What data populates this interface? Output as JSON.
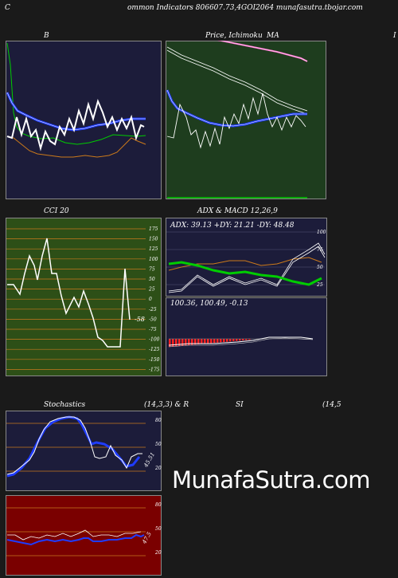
{
  "header": {
    "left_letter": "C",
    "title": "ommon  Indicators 806607.73,4GOI2064  munafasutra.tbojar.com"
  },
  "panels": {
    "bb": {
      "title": "B",
      "bg": "#1c1c3a"
    },
    "price": {
      "title_left": "Price,  Ichimoku",
      "title_right": "MA",
      "edge_letter": "I",
      "bg": "#1e3d1e"
    },
    "cci": {
      "title": "CCI 20",
      "bg": "#2d4f17",
      "value": "-58",
      "ticks": [
        "175",
        "150",
        "125",
        "100",
        "75",
        "50",
        "25",
        "0",
        "-25",
        "-50",
        "-75",
        "-100",
        "-125",
        "-150",
        "-175"
      ]
    },
    "adx": {
      "title": "ADX  & MACD 12,26,9",
      "readout": "ADX: 39.13  +DY: 21.21 -DY: 48.48",
      "bg": "#1c1c3a",
      "ticks": [
        "100",
        "75",
        "50",
        "25"
      ]
    },
    "macd": {
      "readout": "100.36,  100.49,  -0.13",
      "bg": "#1c1c3a"
    },
    "stoch": {
      "title_left": "Stochastics",
      "title_mid": "(14,3,3) & R",
      "title_rsi": "SI",
      "title_right": "(14,5",
      "bg": "#1c1c3a",
      "value": "45.51",
      "ticks": [
        "80",
        "50",
        "20"
      ]
    },
    "rsi": {
      "bg": "#7a0000",
      "value": "47.5",
      "ticks": [
        "80",
        "50",
        "20"
      ]
    }
  },
  "watermark": "MunafaSutra.com",
  "colors": {
    "white_line": "#ffffff",
    "blue_band": "#1f3cff",
    "green_line": "#00cc00",
    "orange_line": "#cc7a1a",
    "pink_line": "#ff66cc",
    "grid_orange": "#c8781e"
  }
}
